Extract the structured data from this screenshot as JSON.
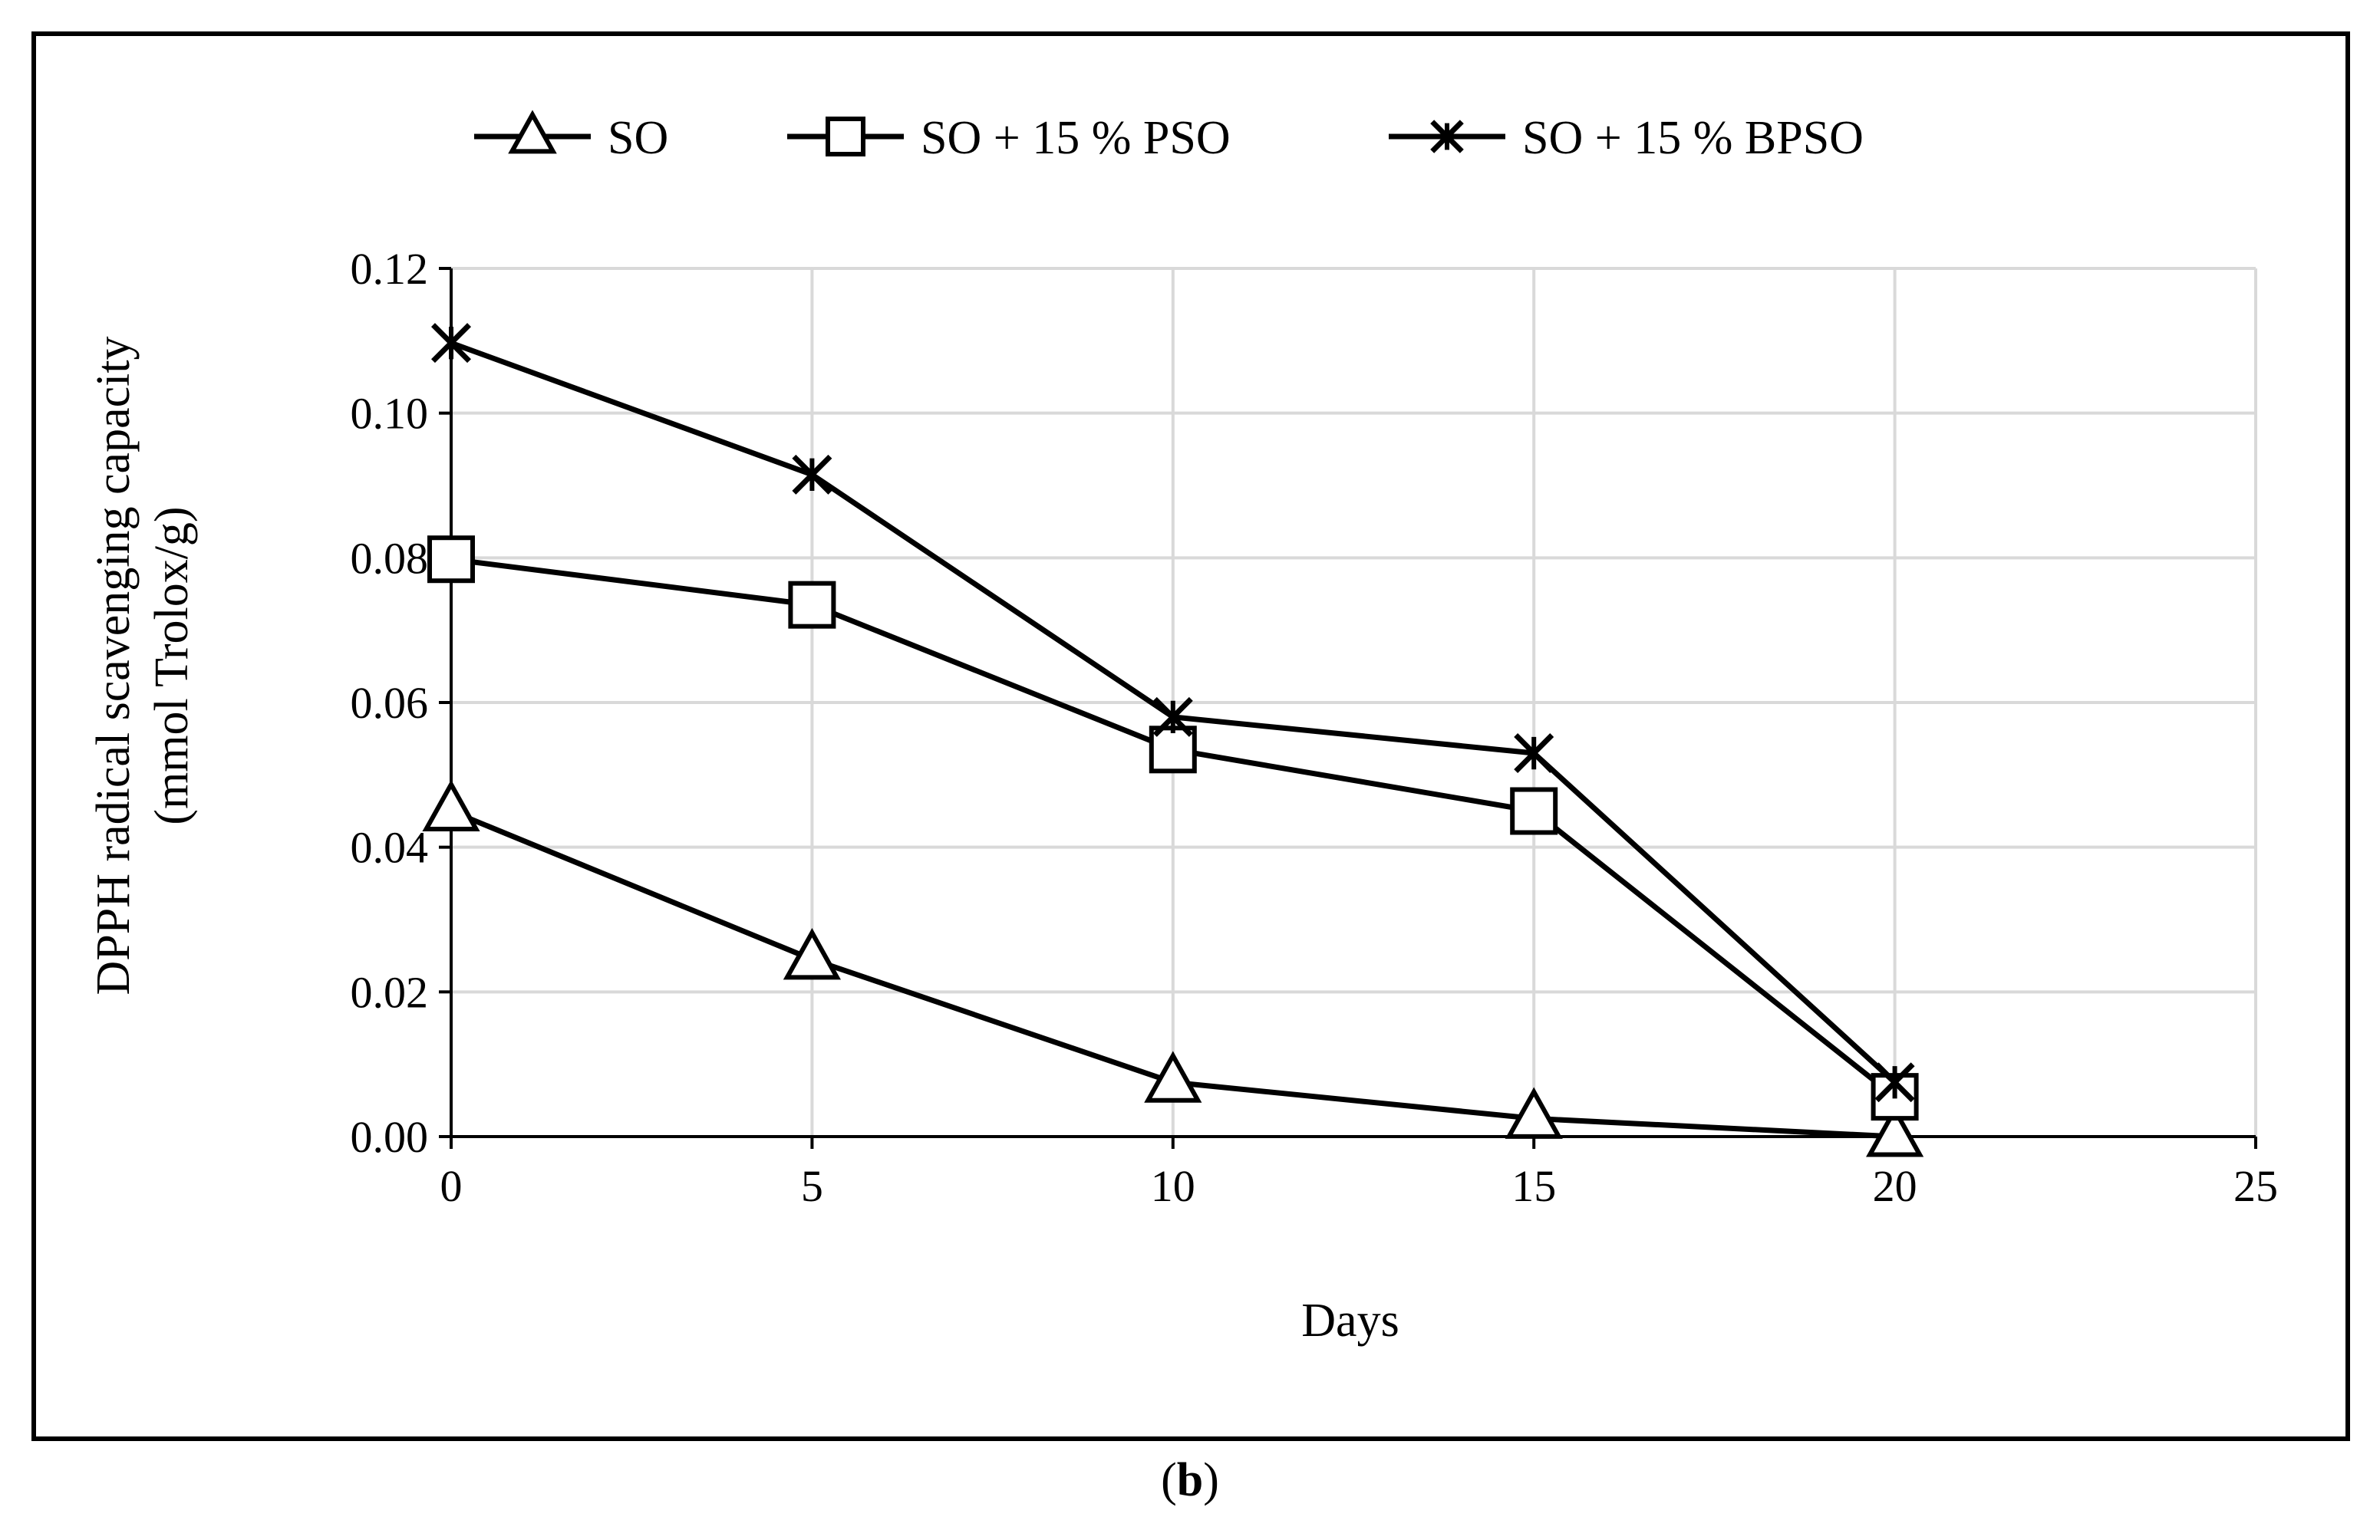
{
  "chart_data": {
    "type": "line",
    "title": "",
    "xlabel": "Days",
    "ylabel_line1": "DPPH radical scavenging capacity",
    "ylabel_line2": "(mmol Trolox/g)",
    "xlim": [
      0,
      25
    ],
    "ylim": [
      0,
      0.12
    ],
    "x_ticks": [
      "0",
      "5",
      "10",
      "15",
      "20",
      "25"
    ],
    "x_tick_values": [
      0,
      5,
      10,
      15,
      20,
      25
    ],
    "y_ticks": [
      "0.00",
      "0.02",
      "0.04",
      "0.06",
      "0.08",
      "0.10",
      "0.12"
    ],
    "y_tick_values": [
      0,
      0.02,
      0.04,
      0.06,
      0.08,
      0.1,
      0.12
    ],
    "grid": true,
    "legend_position": "top",
    "series": [
      {
        "name": "SO",
        "marker": "triangle",
        "x": [
          0,
          5,
          10,
          15,
          20
        ],
        "values": [
          0.045,
          0.0245,
          0.0075,
          0.0025,
          0.0
        ]
      },
      {
        "name": "SO + 15 % PSO",
        "marker": "square",
        "x": [
          0,
          5,
          10,
          15,
          20
        ],
        "values": [
          0.0798,
          0.0735,
          0.0535,
          0.045,
          0.0055
        ]
      },
      {
        "name": "SO + 15 % BPSO",
        "marker": "x-star",
        "x": [
          0,
          5,
          10,
          15,
          20
        ],
        "values": [
          0.1097,
          0.0915,
          0.058,
          0.053,
          0.0075
        ]
      }
    ]
  },
  "panel": {
    "open": "(",
    "letter": "b",
    "close": ")"
  },
  "colors": {
    "line": "#000000",
    "grid": "#d9d9d9",
    "frame": "#000000"
  }
}
